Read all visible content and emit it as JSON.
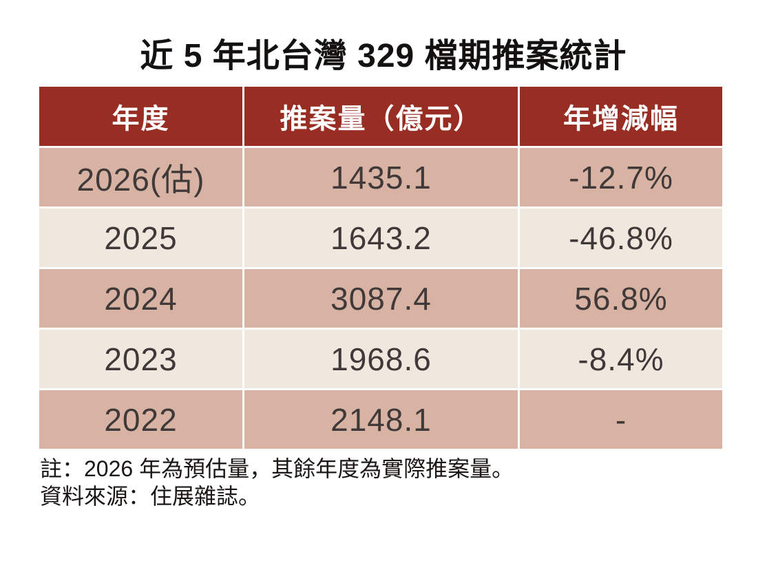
{
  "title": "近 5 年北台灣 329 檔期推案統計",
  "colors": {
    "header_bg": "#972D23",
    "row_pink": "#D8B2A2",
    "row_cream": "#F0E7DE",
    "header_text": "#FFFFFF",
    "cell_text": "#3F3A39"
  },
  "table": {
    "columns": [
      "年度",
      "推案量（億元）",
      "年增減幅"
    ],
    "rows": [
      {
        "year": "2026(估)",
        "volume": "1435.1",
        "yoy": "-12.7%"
      },
      {
        "year": "2025",
        "volume": "1643.2",
        "yoy": "-46.8%"
      },
      {
        "year": "2024",
        "volume": "3087.4",
        "yoy": "56.8%"
      },
      {
        "year": "2023",
        "volume": "1968.6",
        "yoy": "-8.4%"
      },
      {
        "year": "2022",
        "volume": "2148.1",
        "yoy": "-"
      }
    ]
  },
  "notes": [
    "註：2026 年為預估量，其餘年度為實際推案量。",
    "資料來源：住展雜誌。"
  ],
  "chart_data": {
    "type": "table",
    "title": "近 5 年北台灣 329 檔期推案統計",
    "columns": [
      "年度",
      "推案量（億元）",
      "年增減幅"
    ],
    "rows": [
      [
        "2026(估)",
        1435.1,
        "-12.7%"
      ],
      [
        "2025",
        1643.2,
        "-46.8%"
      ],
      [
        "2024",
        3087.4,
        "56.8%"
      ],
      [
        "2023",
        1968.6,
        "-8.4%"
      ],
      [
        "2022",
        2148.1,
        "-"
      ]
    ],
    "notes": [
      "註：2026 年為預估量，其餘年度為實際推案量。",
      "資料來源：住展雜誌。"
    ]
  }
}
